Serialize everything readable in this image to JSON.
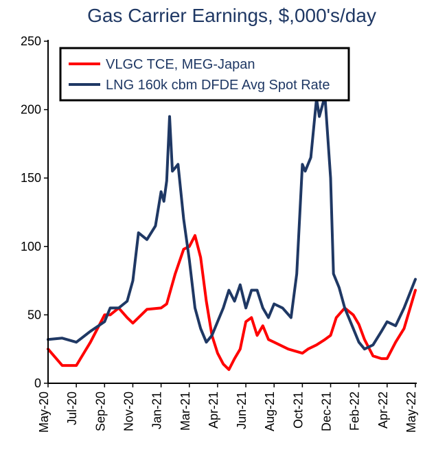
{
  "chart": {
    "type": "line",
    "title": "Gas Carrier Earnings, $,000's/day",
    "title_fontsize": 28,
    "title_color": "#1f3864",
    "background_color": "#ffffff",
    "axis_color": "#000000",
    "tick_label_color": "#000000",
    "tick_label_fontsize": 18,
    "line_width": 4,
    "ylim": [
      0,
      250
    ],
    "ytick_step": 50,
    "yticks": [
      0,
      50,
      100,
      150,
      200,
      250
    ],
    "x_labels": [
      "May-20",
      "Jul-20",
      "Sep-20",
      "Nov-20",
      "Jan-21",
      "Mar-21",
      "Apr-21",
      "Jun-21",
      "Aug-21",
      "Oct-21",
      "Dec-21",
      "Feb-22",
      "Apr-22",
      "May-22"
    ],
    "legend": {
      "border_color": "#000000",
      "border_width": 3,
      "background": "#ffffff",
      "fontsize": 20,
      "items": [
        {
          "label": "VLGC TCE, MEG-Japan",
          "color": "#ff0000"
        },
        {
          "label": "LNG 160k cbm DFDE Avg Spot Rate",
          "color": "#1f3864"
        }
      ]
    },
    "series": [
      {
        "name": "VLGC TCE, MEG-Japan",
        "color": "#ff0000",
        "x": [
          0,
          0.5,
          1,
          1.5,
          2,
          2.2,
          2.5,
          2.8,
          3,
          3.2,
          3.5,
          4,
          4.2,
          4.5,
          4.8,
          5,
          5.2,
          5.4,
          5.6,
          5.8,
          6,
          6.2,
          6.4,
          6.6,
          6.8,
          7,
          7.2,
          7.4,
          7.6,
          7.8,
          8,
          8.5,
          9,
          9.2,
          9.5,
          9.8,
          10,
          10.2,
          10.5,
          10.8,
          11,
          11.2,
          11.5,
          11.8,
          12,
          12.3,
          12.6,
          13
        ],
        "y": [
          25,
          13,
          13,
          30,
          50,
          50,
          55,
          48,
          44,
          48,
          54,
          55,
          58,
          80,
          98,
          100,
          108,
          92,
          60,
          35,
          22,
          14,
          10,
          18,
          25,
          45,
          48,
          35,
          42,
          32,
          30,
          25,
          22,
          25,
          28,
          32,
          35,
          48,
          55,
          50,
          43,
          32,
          20,
          18,
          18,
          30,
          40,
          68
        ]
      },
      {
        "name": "LNG 160k cbm DFDE Avg Spot Rate",
        "color": "#1f3864",
        "x": [
          0,
          0.5,
          1,
          1.5,
          2,
          2.2,
          2.5,
          2.8,
          3,
          3.2,
          3.5,
          3.8,
          4,
          4.1,
          4.2,
          4.3,
          4.4,
          4.6,
          4.8,
          5,
          5.2,
          5.4,
          5.6,
          5.8,
          6,
          6.2,
          6.4,
          6.6,
          6.8,
          7,
          7.2,
          7.4,
          7.6,
          7.8,
          8,
          8.3,
          8.6,
          8.8,
          9,
          9.1,
          9.3,
          9.5,
          9.6,
          9.8,
          10,
          10.1,
          10.3,
          10.5,
          10.8,
          11,
          11.2,
          11.5,
          11.8,
          12,
          12.3,
          12.6,
          13
        ],
        "y": [
          32,
          33,
          30,
          38,
          45,
          55,
          55,
          60,
          75,
          110,
          105,
          115,
          140,
          133,
          148,
          195,
          155,
          160,
          120,
          90,
          55,
          40,
          30,
          35,
          45,
          55,
          68,
          60,
          72,
          55,
          68,
          68,
          55,
          48,
          58,
          55,
          48,
          80,
          160,
          155,
          165,
          208,
          195,
          210,
          150,
          80,
          70,
          55,
          40,
          30,
          25,
          28,
          38,
          45,
          42,
          55,
          76
        ]
      }
    ]
  }
}
